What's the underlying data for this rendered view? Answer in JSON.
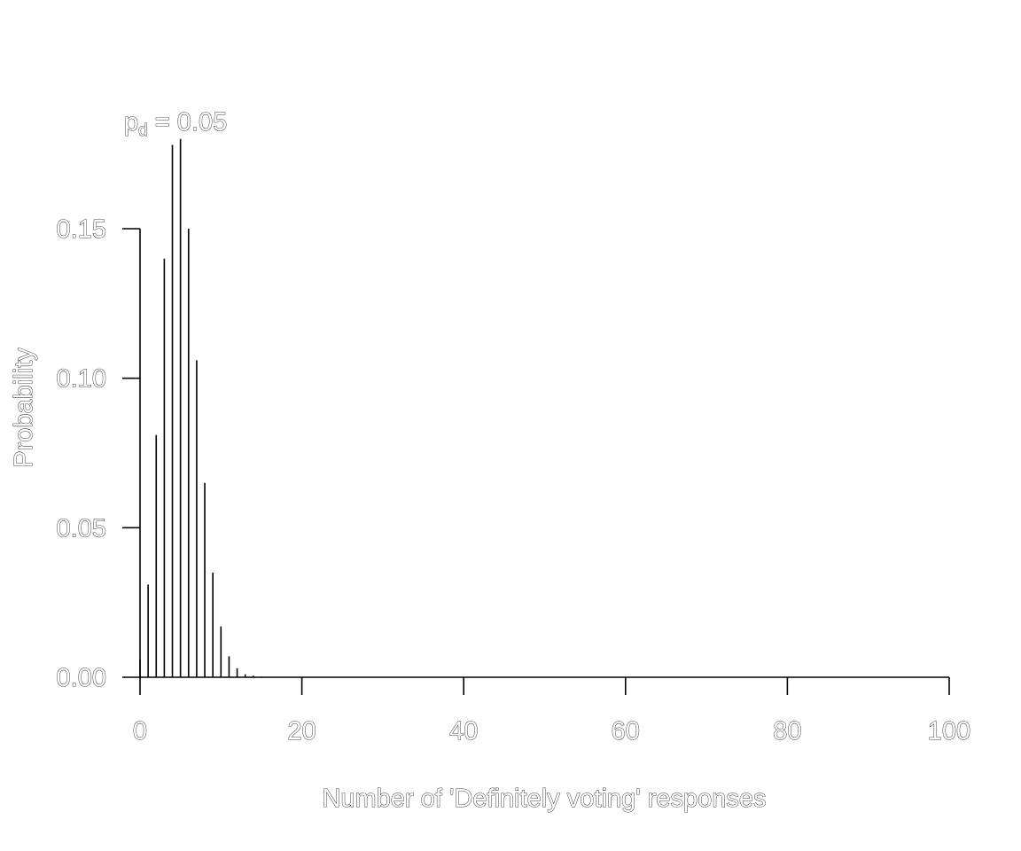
{
  "chart_data": {
    "type": "bar",
    "title": "",
    "annotation": {
      "main": "p",
      "subscript": "d",
      "rest": " = 0.05"
    },
    "xlabel": "Number of 'Definitely voting' responses",
    "ylabel": "Probability",
    "xlim": [
      0,
      100
    ],
    "ylim": [
      0,
      0.18
    ],
    "x_ticks": [
      0,
      20,
      40,
      60,
      80,
      100
    ],
    "x_tick_labels": [
      "0",
      "20",
      "40",
      "60",
      "80",
      "100"
    ],
    "y_ticks": [
      0,
      0.05,
      0.1,
      0.15
    ],
    "y_tick_labels": [
      "0.00",
      "0.05",
      "0.10",
      "0.15"
    ],
    "grid": false,
    "x": [
      0,
      1,
      2,
      3,
      4,
      5,
      6,
      7,
      8,
      9,
      10,
      11,
      12,
      13,
      14,
      15
    ],
    "values": [
      0.006,
      0.031,
      0.081,
      0.14,
      0.178,
      0.18,
      0.15,
      0.106,
      0.065,
      0.035,
      0.017,
      0.007,
      0.003,
      0.001,
      0.0005,
      0.0002
    ]
  }
}
